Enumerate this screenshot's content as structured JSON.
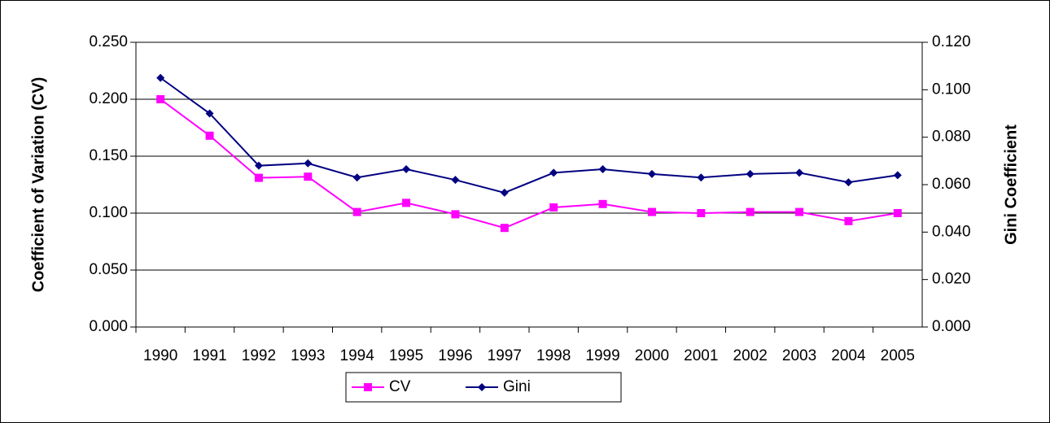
{
  "chart_data": {
    "type": "line",
    "y_label": "Coefficient of Variation (CV)",
    "y2_label": "Gini Coefficient",
    "categories": [
      "1990",
      "1991",
      "1992",
      "1993",
      "1994",
      "1995",
      "1996",
      "1997",
      "1998",
      "1999",
      "2000",
      "2001",
      "2002",
      "2003",
      "2004",
      "2005"
    ],
    "series": [
      {
        "name": "CV",
        "color": "#ff00ff",
        "marker": "square",
        "values": [
          0.2,
          0.168,
          0.131,
          0.132,
          0.101,
          0.109,
          0.099,
          0.087,
          0.105,
          0.108,
          0.101,
          0.1,
          0.101,
          0.101,
          0.093,
          0.1
        ]
      },
      {
        "name": "Gini",
        "color": "#000080",
        "marker": "diamond",
        "axis": "y2",
        "values": [
          0.105,
          0.09,
          0.068,
          0.069,
          0.063,
          0.0665,
          0.062,
          0.0566,
          0.065,
          0.0665,
          0.0645,
          0.063,
          0.0645,
          0.065,
          0.061,
          0.064
        ]
      }
    ],
    "ylim": [
      0,
      0.25
    ],
    "yticks": [
      {
        "value": 0,
        "label": "0.000"
      },
      {
        "value": 0.05,
        "label": "0.050"
      },
      {
        "value": 0.1,
        "label": "0.100"
      },
      {
        "value": 0.15,
        "label": "0.150"
      },
      {
        "value": 0.2,
        "label": "0.200"
      },
      {
        "value": 0.25,
        "label": "0.250"
      }
    ],
    "y2lim": [
      0,
      0.12
    ],
    "y2ticks": [
      {
        "value": 0,
        "label": "0.000"
      },
      {
        "value": 0.02,
        "label": "0.020"
      },
      {
        "value": 0.04,
        "label": "0.040"
      },
      {
        "value": 0.06,
        "label": "0.060"
      },
      {
        "value": 0.08,
        "label": "0.080"
      },
      {
        "value": 0.1,
        "label": "0.100"
      },
      {
        "value": 0.12,
        "label": "0.120"
      }
    ],
    "grid": true,
    "legend": "bottom"
  }
}
